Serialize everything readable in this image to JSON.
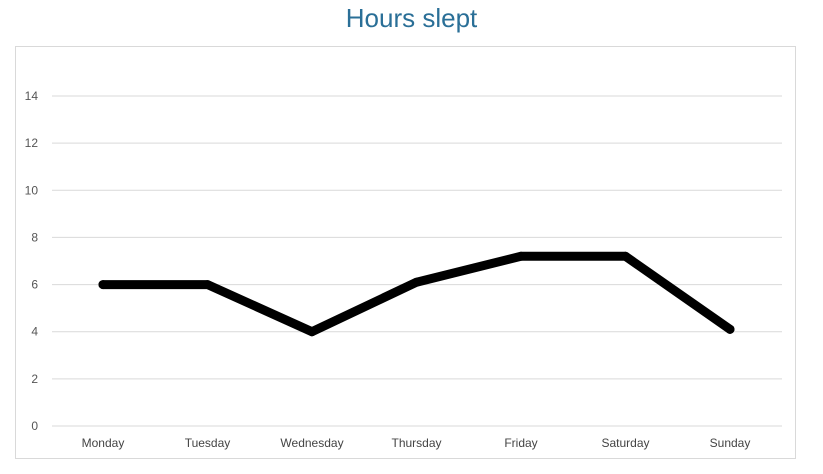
{
  "chart_data": {
    "type": "line",
    "title": "Hours slept",
    "xlabel": "",
    "ylabel": "",
    "categories": [
      "Monday",
      "Tuesday",
      "Wednesday",
      "Thursday",
      "Friday",
      "Saturday",
      "Sunday"
    ],
    "series": [
      {
        "values": [
          6,
          6,
          4,
          6.1,
          7.2,
          7.2,
          4.1
        ],
        "color": "#000000"
      }
    ],
    "ylim": [
      0,
      14
    ],
    "yticks": [
      0,
      2,
      4,
      6,
      8,
      10,
      12,
      14
    ],
    "grid": true,
    "legend": "none",
    "colors": {
      "title": "#2a6f97",
      "grid": "#d9d9d9",
      "line": "#000000"
    }
  }
}
